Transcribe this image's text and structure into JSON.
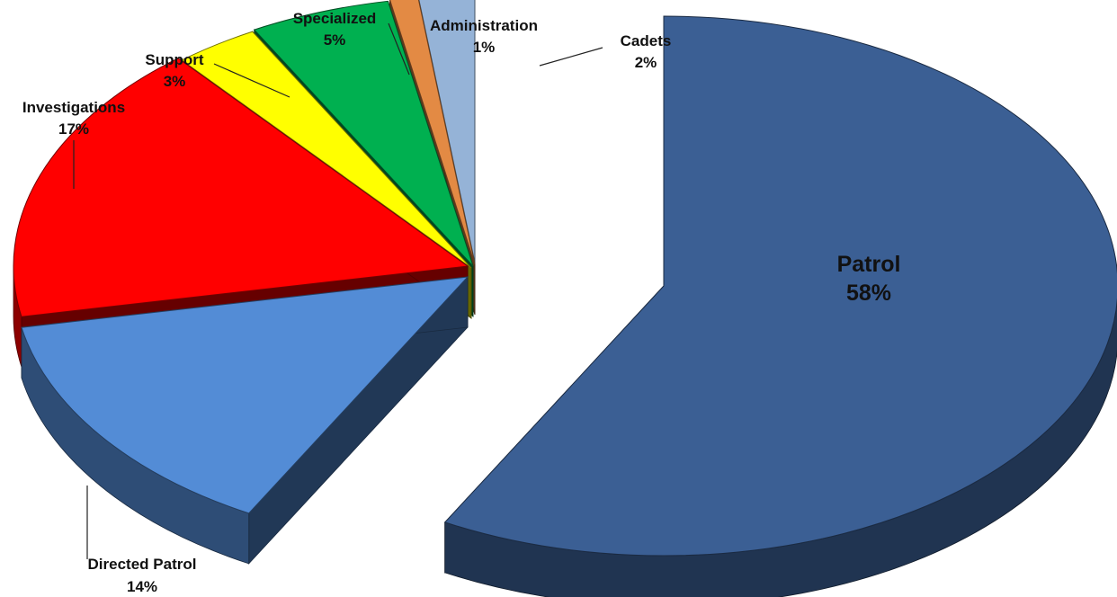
{
  "chart_data": {
    "type": "pie",
    "title": "",
    "style": "3d-exploded",
    "slices": [
      {
        "label": "Patrol",
        "value": 58,
        "display": "58%",
        "color": "#3b5f94"
      },
      {
        "label": "Directed Patrol",
        "value": 14,
        "display": "14%",
        "color": "#538cd6"
      },
      {
        "label": "Investigations",
        "value": 17,
        "display": "17%",
        "color": "#ff0000"
      },
      {
        "label": "Support",
        "value": 3,
        "display": "3%",
        "color": "#ffff00"
      },
      {
        "label": "Specialized",
        "value": 5,
        "display": "5%",
        "color": "#00b050"
      },
      {
        "label": "Administration",
        "value": 1,
        "display": "1%",
        "color": "#e38a44"
      },
      {
        "label": "Cadets",
        "value": 2,
        "display": "2%",
        "color": "#95b3d7"
      }
    ]
  }
}
